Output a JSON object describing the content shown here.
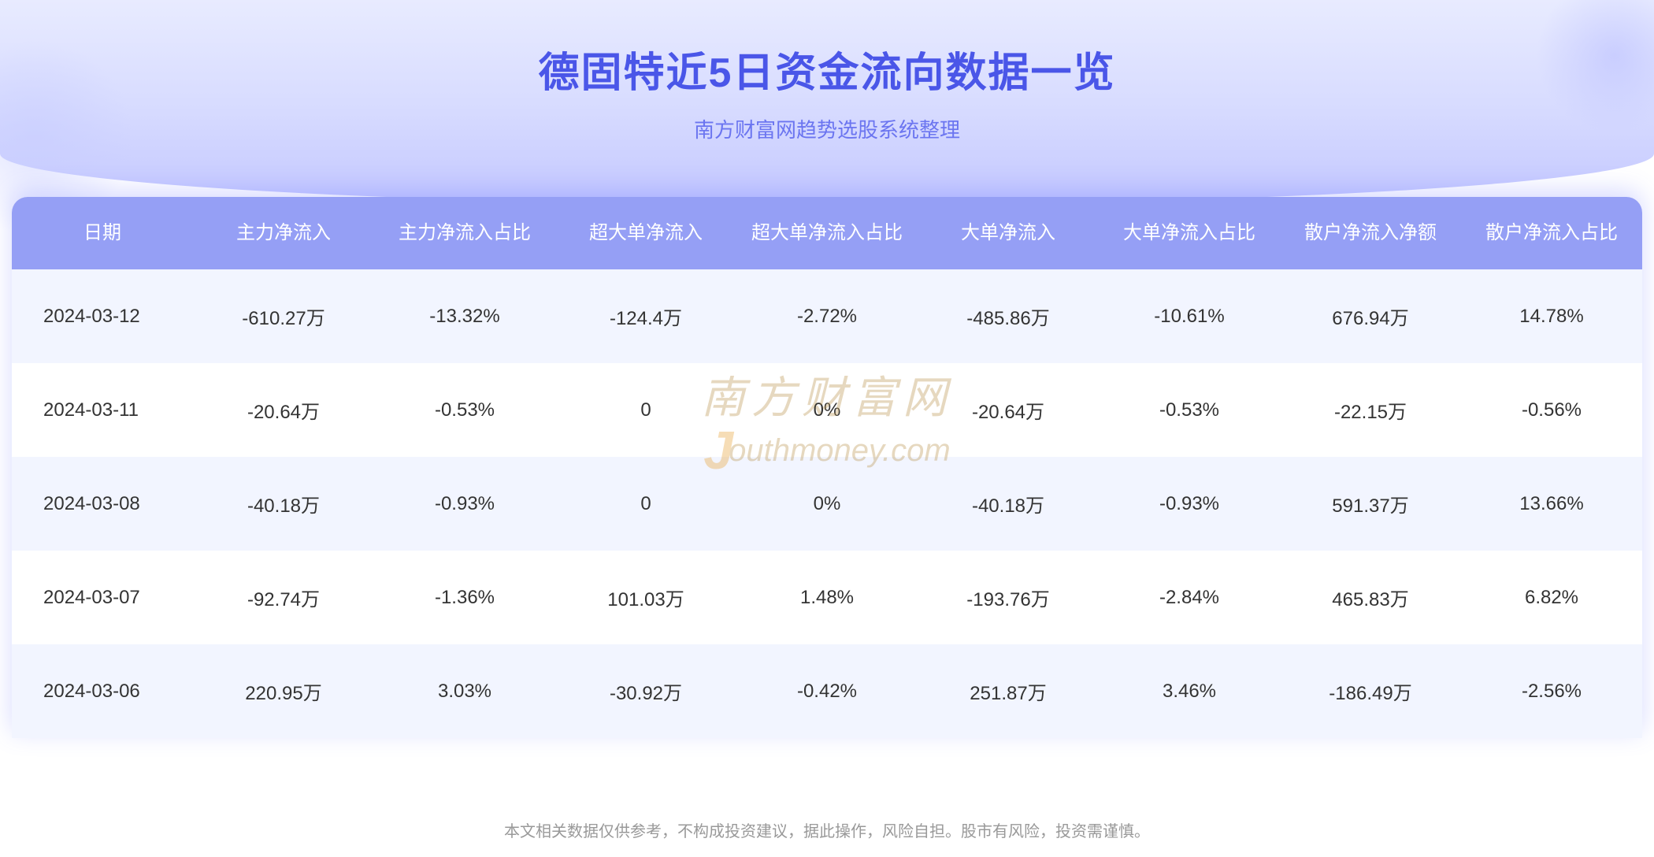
{
  "header": {
    "title": "德固特近5日资金流向数据一览",
    "subtitle": "南方财富网趋势选股系统整理",
    "title_color": "#4a56e8",
    "subtitle_color": "#6b75f0",
    "bg_gradient_start": "#e8ebff",
    "bg_gradient_end": "#c4c8ff"
  },
  "table": {
    "header_bg": "#959ff5",
    "header_text_color": "#ffffff",
    "row_odd_bg": "#f2f5ff",
    "row_even_bg": "#ffffff",
    "cell_text_color": "#333333",
    "columns": [
      "日期",
      "主力净流入",
      "主力净流入占比",
      "超大单净流入",
      "超大单净流入占比",
      "大单净流入",
      "大单净流入占比",
      "散户净流入净额",
      "散户净流入占比"
    ],
    "rows": [
      [
        "2024-03-12",
        "-610.27万",
        "-13.32%",
        "-124.4万",
        "-2.72%",
        "-485.86万",
        "-10.61%",
        "676.94万",
        "14.78%"
      ],
      [
        "2024-03-11",
        "-20.64万",
        "-0.53%",
        "0",
        "0%",
        "-20.64万",
        "-0.53%",
        "-22.15万",
        "-0.56%"
      ],
      [
        "2024-03-08",
        "-40.18万",
        "-0.93%",
        "0",
        "0%",
        "-40.18万",
        "-0.93%",
        "591.37万",
        "13.66%"
      ],
      [
        "2024-03-07",
        "-92.74万",
        "-1.36%",
        "101.03万",
        "1.48%",
        "-193.76万",
        "-2.84%",
        "465.83万",
        "6.82%"
      ],
      [
        "2024-03-06",
        "220.95万",
        "3.03%",
        "-30.92万",
        "-0.42%",
        "251.87万",
        "3.46%",
        "-186.49万",
        "-2.56%"
      ]
    ]
  },
  "disclaimer": "本文相关数据仅供参考，不构成投资建议，据此操作，风险自担。股市有风险，投资需谨慎。",
  "watermark": {
    "cn": "南方财富网",
    "en_prefix": "J",
    "en_rest": "outhmoney.com",
    "color": "#b8924a"
  }
}
